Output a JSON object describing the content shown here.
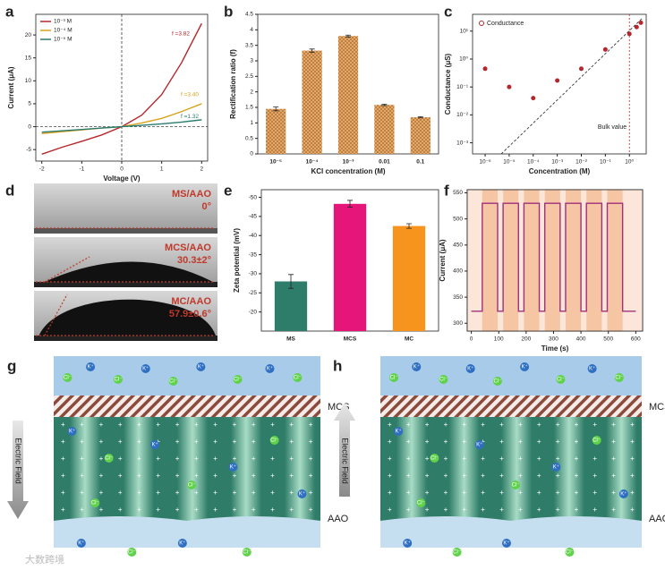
{
  "chart_data": [
    {
      "type": "line",
      "panel": "a",
      "x_label": "Voltage (V)",
      "y_label": "Current (μA)",
      "x": [
        -2,
        -1.5,
        -1,
        -0.5,
        0,
        0.5,
        1,
        1.5,
        2
      ],
      "series": [
        {
          "name": "10⁻³ M",
          "color": "#b5272d",
          "values": [
            -6,
            -4.5,
            -3.2,
            -1.8,
            0,
            2.5,
            7,
            14,
            22.5
          ]
        },
        {
          "name": "10⁻⁴ M",
          "color": "#d9a31c",
          "values": [
            -1.5,
            -1.1,
            -0.7,
            -0.3,
            0,
            0.8,
            1.8,
            3.3,
            5
          ]
        },
        {
          "name": "10⁻⁵ M",
          "color": "#2a7b6f",
          "values": [
            -1.2,
            -0.9,
            -0.6,
            -0.3,
            0,
            0.3,
            0.6,
            1,
            1.5
          ]
        }
      ],
      "annotations": [
        "f =3.82",
        "f =3.40",
        "f =1.32"
      ],
      "xlim": [
        -2.15,
        2.15
      ],
      "xticks": [
        -2,
        -1,
        0,
        1,
        2
      ],
      "ylim": [
        -7.5,
        24.5
      ],
      "yticks": [
        -5,
        0,
        5,
        10,
        15,
        20
      ]
    },
    {
      "type": "bar",
      "panel": "b",
      "x_label": "KCl concentration (M)",
      "y_label": "Rectification ratio (f)",
      "categories": [
        "10⁻⁵",
        "10⁻⁴",
        "10⁻³",
        "0.01",
        "0.1"
      ],
      "values": [
        1.45,
        3.33,
        3.8,
        1.58,
        1.18
      ],
      "errors": [
        0.06,
        0.05,
        0.03,
        0.02,
        0.02
      ],
      "color": "#e8a864",
      "ylim": [
        0,
        4.5
      ],
      "yticks": [
        0,
        0.5,
        1,
        1.5,
        2,
        2.5,
        3,
        3.5,
        4,
        4.5
      ]
    },
    {
      "type": "scatter",
      "panel": "c",
      "x_label": "Concentration (M)",
      "y_label": "Conductance (μS)",
      "log_x": true,
      "log_y": true,
      "legend": "upper left",
      "annotation": "Bulk value",
      "series": [
        {
          "name": "Conductance",
          "color": "#b5272d",
          "x": [
            1e-06,
            1e-05,
            0.0001,
            0.001,
            0.01,
            0.1,
            1,
            2,
            3
          ],
          "values": [
            0.45,
            0.1,
            0.04,
            0.17,
            0.45,
            2.2,
            8,
            14,
            20
          ]
        }
      ],
      "xlim": [
        3e-07,
        5
      ],
      "xticks": [
        {
          "value": 1e-06,
          "label": "10⁻⁶"
        },
        {
          "value": 1e-05,
          "label": "10⁻⁵"
        },
        {
          "value": 0.0001,
          "label": "10⁻⁴"
        },
        {
          "value": 0.001,
          "label": "10⁻³"
        },
        {
          "value": 0.01,
          "label": "10⁻²"
        },
        {
          "value": 0.1,
          "label": "10⁻¹"
        },
        {
          "value": 1,
          "label": "10⁰"
        }
      ],
      "ylim": [
        0.0004,
        40
      ],
      "yticks": [
        {
          "value": 0.001,
          "label": "10⁻³"
        },
        {
          "value": 0.01,
          "label": "10⁻²"
        },
        {
          "value": 0.1,
          "label": "10⁻¹"
        },
        {
          "value": 1,
          "label": "10⁰"
        },
        {
          "value": 10,
          "label": "10¹"
        }
      ]
    },
    {
      "type": "bar",
      "panel": "e",
      "y_label": "Zeta potential (mV)",
      "categories": [
        "MS",
        "MCS",
        "MC"
      ],
      "values": [
        -28,
        -48.3,
        -42.5
      ],
      "errors": [
        1.8,
        0.9,
        0.6
      ],
      "colors": [
        "#2e7d6b",
        "#e6157a",
        "#f7941d"
      ],
      "ylim": [
        -15,
        -52
      ],
      "yticks": [
        -20,
        -25,
        -30,
        -35,
        -40,
        -45,
        -50
      ]
    },
    {
      "type": "line",
      "panel": "f",
      "x_label": "Time (s)",
      "y_label": "Current (μA)",
      "x": [
        0,
        40,
        40,
        96,
        96,
        116,
        116,
        172,
        172,
        192,
        192,
        248,
        248,
        268,
        268,
        324,
        324,
        344,
        344,
        400,
        400,
        420,
        420,
        476,
        476,
        496,
        496,
        552,
        552,
        600
      ],
      "series": [
        {
          "color": "#a0307c",
          "values": [
            323,
            323,
            530,
            530,
            323,
            323,
            530,
            530,
            323,
            323,
            530,
            530,
            323,
            323,
            530,
            530,
            323,
            323,
            530,
            530,
            323,
            323,
            530,
            530,
            323,
            323,
            530,
            530,
            323,
            323
          ]
        }
      ],
      "xlim": [
        -15,
        625
      ],
      "xticks": [
        0,
        100,
        200,
        300,
        400,
        500,
        600
      ],
      "ylim": [
        285,
        556
      ],
      "yticks": [
        300,
        350,
        400,
        450,
        500,
        550
      ]
    }
  ],
  "panel_d": {
    "panel": "d",
    "images": [
      {
        "label": "MS/AAO",
        "angle": "0°"
      },
      {
        "label": "MCS/AAO",
        "angle": "30.3±2°"
      },
      {
        "label": "MC/AAO",
        "angle": "57.9±0.6°"
      }
    ]
  },
  "diagrams": [
    {
      "panel": "g",
      "layer_top": "MCS",
      "layer_bottom": "AAO",
      "field": "Electric Field"
    },
    {
      "panel": "h",
      "layer_top": "MCS",
      "layer_bottom": "AAO",
      "field": "Electric Field"
    }
  ],
  "ions": {
    "k": "K⁺",
    "cl": "Cl⁻"
  },
  "watermark": "大数跨境"
}
